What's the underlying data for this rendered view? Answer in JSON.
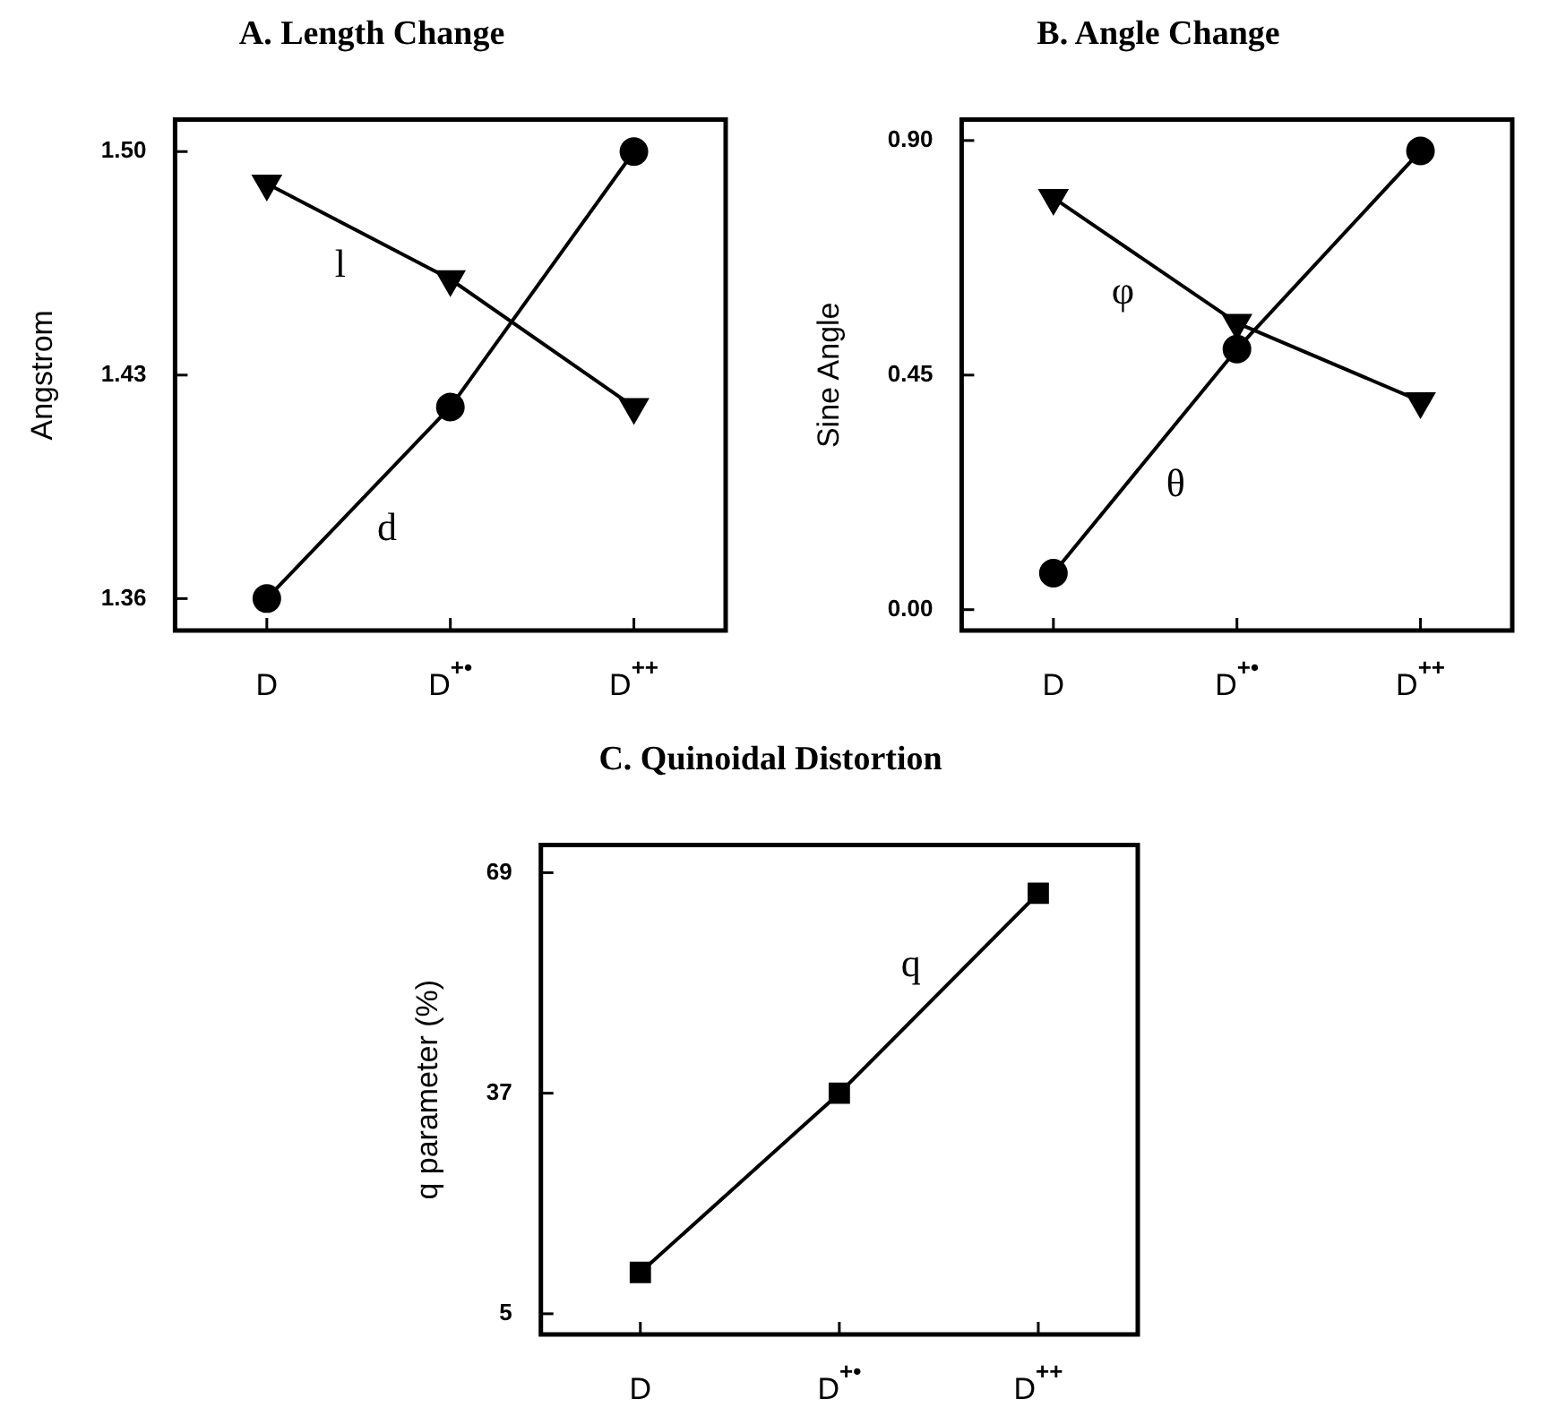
{
  "chart_data": [
    {
      "type": "line",
      "title": "A. Length Change",
      "ylabel": "Angstrom",
      "categories": [
        "D",
        "D$^{+•}$",
        "D$^{++}$"
      ],
      "ylim": [
        1.35,
        1.51
      ],
      "yticks": [
        {
          "value": 1.36,
          "label": "1.36"
        },
        {
          "value": 1.43,
          "label": "1.43"
        },
        {
          "value": 1.5,
          "label": "1.50"
        }
      ],
      "legend": false,
      "series": [
        {
          "name": "l",
          "color": "#000000",
          "marker": "triangle",
          "values": [
            1.49,
            1.46,
            1.42
          ]
        },
        {
          "name": "d",
          "color": "#000000",
          "marker": "circle",
          "values": [
            1.36,
            1.42,
            1.5
          ]
        }
      ]
    },
    {
      "type": "line",
      "title": "B. Angle Change",
      "ylabel": "Sine Angle",
      "categories": [
        "D",
        "D$^{+•}$",
        "D$^{++}$"
      ],
      "ylim": [
        -0.04,
        0.94
      ],
      "yticks": [
        {
          "value": 0,
          "label": "0.00"
        },
        {
          "value": 0.45,
          "label": "0.45"
        },
        {
          "value": 0.9,
          "label": "0.90"
        }
      ],
      "legend": false,
      "series": [
        {
          "name": "φ",
          "color": "#000000",
          "marker": "triangle",
          "values": [
            0.79,
            0.55,
            0.4
          ]
        },
        {
          "name": "θ",
          "color": "#000000",
          "marker": "circle",
          "values": [
            0.07,
            0.5,
            0.88
          ]
        }
      ]
    },
    {
      "type": "line",
      "title": "C. Quinoidal Distortion",
      "ylabel": "q parameter (%)",
      "categories": [
        "D",
        "D$^{+•}$",
        "D$^{++}$"
      ],
      "ylim": [
        2,
        73
      ],
      "yticks": [
        5,
        37,
        69
      ],
      "legend": false,
      "series": [
        {
          "name": "q",
          "color": "#000000",
          "marker": "square",
          "values": [
            11,
            37,
            66
          ]
        }
      ]
    }
  ]
}
